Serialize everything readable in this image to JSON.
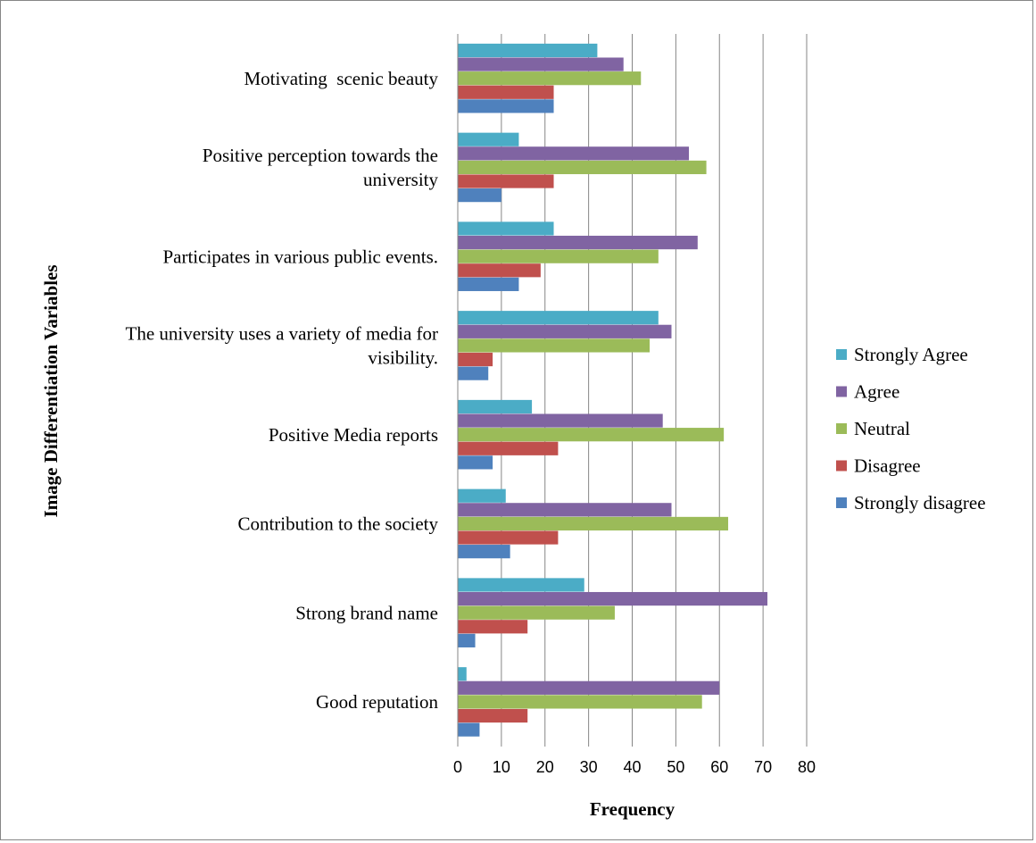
{
  "chart_data": {
    "type": "bar",
    "orientation": "horizontal",
    "xlabel": "Frequency",
    "ylabel": "Image Differentiation Variables",
    "xlim": [
      0,
      80
    ],
    "xticks": [
      "0",
      "10",
      "20",
      "30",
      "40",
      "50",
      "60",
      "70",
      "80"
    ],
    "grid": "vertical",
    "legend_position": "right",
    "categories": [
      [
        "Motivating  scenic beauty"
      ],
      [
        "Positive perception towards the",
        "university"
      ],
      [
        "Participates in various public events."
      ],
      [
        "The university uses a variety of media for",
        "visibility."
      ],
      [
        "Positive Media reports"
      ],
      [
        "Contribution to the society"
      ],
      [
        "Strong brand name"
      ],
      [
        "Good reputation"
      ]
    ],
    "series": [
      {
        "name": "Strongly Agree",
        "color": "#4bacc6",
        "values": [
          32,
          14,
          22,
          46,
          17,
          11,
          29,
          2
        ]
      },
      {
        "name": "Agree",
        "color": "#8064a2",
        "values": [
          38,
          53,
          55,
          49,
          47,
          49,
          71,
          60
        ]
      },
      {
        "name": "Neutral",
        "color": "#9bbb59",
        "values": [
          42,
          57,
          46,
          44,
          61,
          62,
          36,
          56
        ]
      },
      {
        "name": "Disagree",
        "color": "#c0504d",
        "values": [
          22,
          22,
          19,
          8,
          23,
          23,
          16,
          16
        ]
      },
      {
        "name": "Strongly disagree",
        "color": "#4f81bd",
        "values": [
          22,
          10,
          14,
          7,
          8,
          12,
          4,
          5
        ]
      }
    ]
  }
}
